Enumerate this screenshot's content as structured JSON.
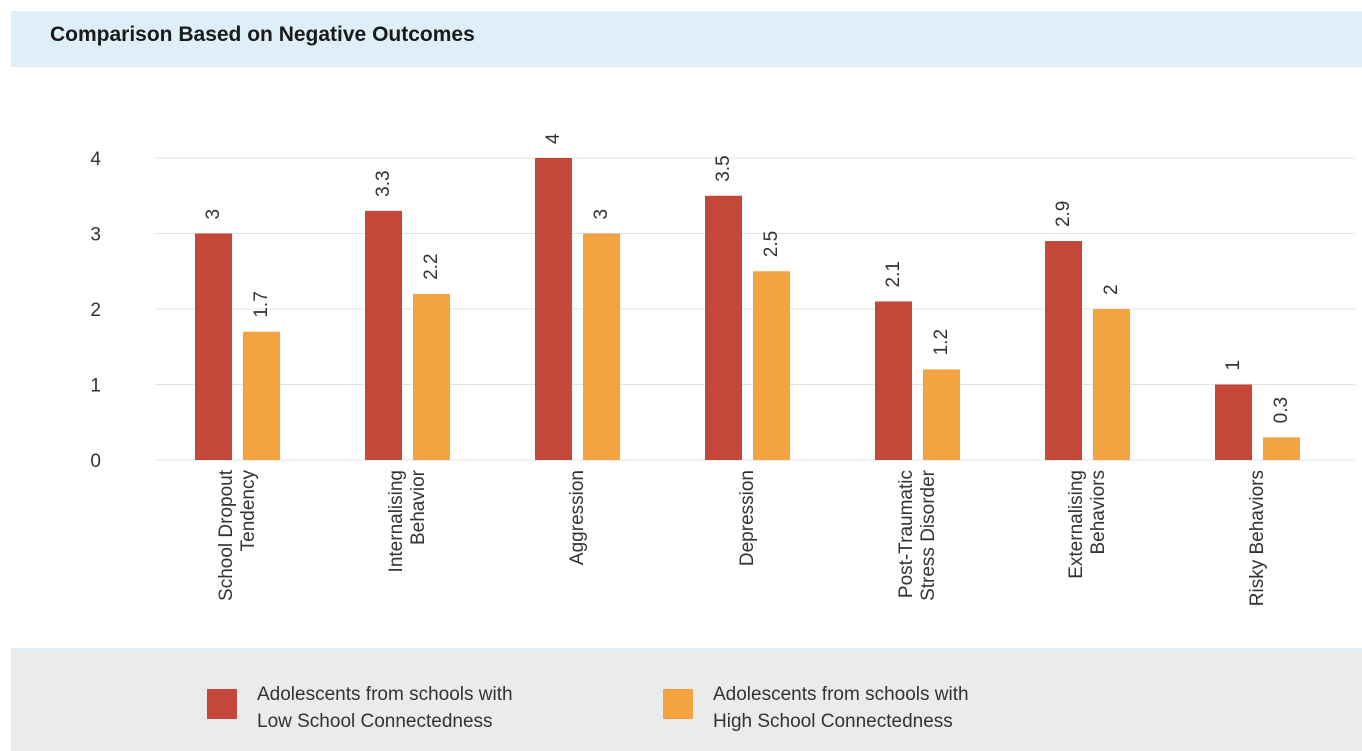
{
  "header": {
    "title": "Comparison Based on Negative Outcomes"
  },
  "colors": {
    "low": "#c4473a",
    "high": "#f4a342",
    "header_bg": "#dfeffa",
    "legend_bg": "#ebebeb",
    "grid": "#e3e3e3"
  },
  "legend": {
    "items": [
      {
        "label": "Adolescents from schools with\nLow School Connectedness"
      },
      {
        "label": "Adolescents from schools with\nHigh School Connectedness"
      }
    ]
  },
  "chart_data": {
    "type": "bar",
    "title": "Comparison Based on Negative Outcomes",
    "categories": [
      [
        "School Dropout",
        "Tendency"
      ],
      [
        "Internalising",
        "Behavior"
      ],
      [
        "Aggression"
      ],
      [
        "Depression"
      ],
      [
        "Post-Traumatic",
        "Stress Disorder"
      ],
      [
        "Externalising",
        "Behaviors"
      ],
      [
        "Risky Behaviors"
      ]
    ],
    "series": [
      {
        "name": "Adolescents from schools with Low School Connectedness",
        "values": [
          3,
          3.3,
          4,
          3.5,
          2.1,
          2.9,
          1
        ]
      },
      {
        "name": "Adolescents from schools with High School Connectedness",
        "values": [
          1.7,
          2.2,
          3,
          2.5,
          1.2,
          2,
          0.3
        ]
      }
    ],
    "yticks": [
      "0",
      "1",
      "2",
      "3",
      "4"
    ],
    "ylim": [
      0,
      4
    ],
    "grid": true,
    "legend_position": "bottom"
  }
}
